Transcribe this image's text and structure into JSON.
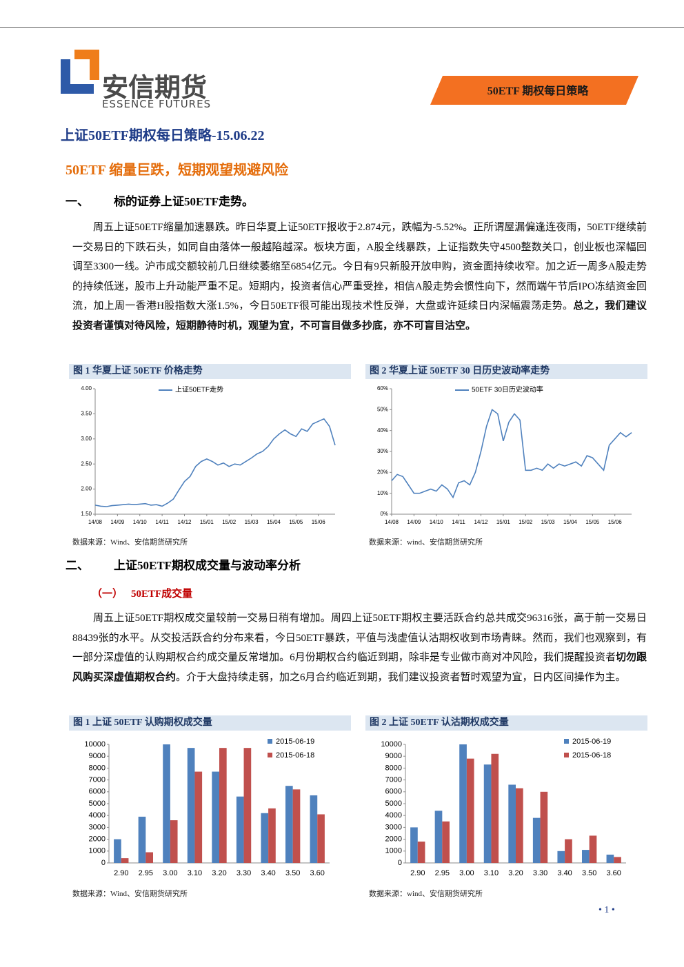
{
  "header": {
    "logo_cn": "安信期货",
    "logo_en": "ESSENCE FUTURES",
    "banner": "50ETF 期权每日策略"
  },
  "title": "上证50ETF期权每日策略-15.06.22",
  "subtitle": "50ETF 缩量巨跌，短期观望规避风险",
  "section1": {
    "number": "一、",
    "heading": "标的证券上证50ETF走势。",
    "paragraph": "周五上证50ETF缩量加速暴跌。昨日华夏上证50ETF报收于2.874元，跌幅为-5.52%。正所谓屋漏偏逢连夜雨，50ETF继续前一交易日的下跌石头，如同自由落体一般越陷越深。板块方面，A股全线暴跌，上证指数失守4500整数关口，创业板也深幅回调至3300一线。沪市成交额较前几日继续萎缩至6854亿元。今日有9只新股开放申购，资金面持续收窄。加之近一周多A股走势的持续低迷，股市上升动能严重不足。短期内，投资者信心严重受挫，相信A股走势会惯性向下，然而端午节后IPO冻结资金回流，加上周一香港H股指数大涨1.5%，今日50ETF很可能出现技术性反弹，大盘或许延续日内深幅震荡走势。",
    "paragraph_bold": "总之，我们建议投资者谨慎对待风险，短期静待时机，观望为宜，不可盲目做多抄底，亦不可盲目沽空。"
  },
  "section2": {
    "number": "二、",
    "heading": "上证50ETF期权成交量与波动率分析",
    "sub_number": "（一）",
    "sub_heading": "50ETF成交量",
    "paragraph": "周五上证50ETF期权成交量较前一交易日稍有增加。周四上证50ETF期权主要活跃合约总共成交96316张，高于前一交易日88439张的水平。从交投活跃合约分布来看，今日50ETF暴跌，平值与浅虚值认沽期权收到市场青睐。然而，我们也观察到，有一部分深虚值的认购期权合约成交量反常增加。6月份期权合约临近到期，除非是专业做市商对冲风险，我们提醒投资者",
    "paragraph_bold": "切勿跟风购买深虚值期权合约",
    "paragraph_end": "。介于大盘持续走弱，加之6月合约临近到期，我们建议投资者暂时观望为宜，日内区间操作为主。"
  },
  "page_number": "1",
  "chart_data": [
    {
      "type": "line",
      "title": "图 1 华夏上证 50ETF 价格走势",
      "source": "数据来源：Wind、安信期货研究所",
      "series": [
        {
          "name": "上证50ETF走势",
          "color": "#4f81bd",
          "values": [
            1.68,
            1.66,
            1.65,
            1.67,
            1.68,
            1.69,
            1.7,
            1.69,
            1.7,
            1.71,
            1.68,
            1.69,
            1.66,
            1.72,
            1.8,
            1.98,
            2.15,
            2.25,
            2.45,
            2.55,
            2.6,
            2.55,
            2.48,
            2.52,
            2.45,
            2.5,
            2.48,
            2.55,
            2.62,
            2.7,
            2.75,
            2.85,
            3.0,
            3.1,
            3.18,
            3.1,
            3.05,
            3.2,
            3.15,
            3.3,
            3.35,
            3.4,
            3.25,
            2.874
          ]
        }
      ],
      "ylim": [
        1.5,
        4.0
      ],
      "yticks": [
        {
          "value": 1.5,
          "label": "1.50"
        },
        {
          "value": 2,
          "label": "2.00"
        },
        {
          "value": 2.5,
          "label": "2.50"
        },
        {
          "value": 3,
          "label": "3.00"
        },
        {
          "value": 3.5,
          "label": "3.50"
        },
        {
          "value": 4,
          "label": "4.00"
        }
      ],
      "xticks": [
        {
          "value": 0,
          "label": "14/08"
        },
        {
          "value": 4,
          "label": "14/09"
        },
        {
          "value": 8,
          "label": "14/10"
        },
        {
          "value": 12,
          "label": "14/11"
        },
        {
          "value": 16,
          "label": "14/12"
        },
        {
          "value": 20,
          "label": "15/01"
        },
        {
          "value": 24,
          "label": "15/02"
        },
        {
          "value": 28,
          "label": "15/03"
        },
        {
          "value": 32,
          "label": "15/04"
        },
        {
          "value": 36,
          "label": "15/05"
        },
        {
          "value": 40,
          "label": "15/06"
        }
      ]
    },
    {
      "type": "line",
      "title": "图 2 华夏上证 50ETF 30 日历史波动率走势",
      "source": "数据来源：wind、安信期货研究所",
      "series": [
        {
          "name": "50ETF 30日历史波动率",
          "color": "#4f81bd",
          "values": [
            16,
            19,
            18,
            14,
            10,
            10,
            11,
            12,
            11,
            14,
            12,
            8,
            15,
            16,
            14,
            20,
            30,
            42,
            50,
            48,
            35,
            44,
            48,
            45,
            21,
            21,
            22,
            21,
            24,
            22,
            24,
            23,
            24,
            25,
            23,
            28,
            27,
            24,
            21,
            33,
            36,
            39,
            37,
            39
          ]
        }
      ],
      "ylim": [
        0,
        60
      ],
      "yticks": [
        {
          "value": 0,
          "label": "0%"
        },
        {
          "value": 10,
          "label": "10%"
        },
        {
          "value": 20,
          "label": "20%"
        },
        {
          "value": 30,
          "label": "30%"
        },
        {
          "value": 40,
          "label": "40%"
        },
        {
          "value": 50,
          "label": "50%"
        },
        {
          "value": 60,
          "label": "60%"
        }
      ],
      "xticks": [
        {
          "value": 0,
          "label": "14/08"
        },
        {
          "value": 4,
          "label": "14/09"
        },
        {
          "value": 8,
          "label": "14/10"
        },
        {
          "value": 12,
          "label": "14/11"
        },
        {
          "value": 16,
          "label": "14/12"
        },
        {
          "value": 20,
          "label": "15/01"
        },
        {
          "value": 24,
          "label": "15/02"
        },
        {
          "value": 28,
          "label": "15/03"
        },
        {
          "value": 32,
          "label": "15/04"
        },
        {
          "value": 36,
          "label": "15/05"
        },
        {
          "value": 40,
          "label": "15/06"
        }
      ]
    },
    {
      "type": "bar",
      "title": "图 1 上证 50ETF 认购期权成交量",
      "source": "数据来源：Wind、安信期货研究所",
      "categories": [
        "2.90",
        "2.95",
        "3.00",
        "3.10",
        "3.20",
        "3.30",
        "3.40",
        "3.50",
        "3.60"
      ],
      "series": [
        {
          "name": "2015-06-19",
          "color": "#4f81bd",
          "values": [
            2000,
            3900,
            10000,
            9700,
            7700,
            5600,
            4200,
            6500,
            5700
          ]
        },
        {
          "name": "2015-06-18",
          "color": "#c0504d",
          "values": [
            400,
            900,
            3600,
            7700,
            9700,
            9700,
            4600,
            6200,
            4100
          ]
        }
      ],
      "ylim": [
        0,
        10000
      ],
      "yticks": [
        0,
        1000,
        2000,
        3000,
        4000,
        5000,
        6000,
        7000,
        8000,
        9000,
        10000
      ]
    },
    {
      "type": "bar",
      "title": "图 2 上证 50ETF 认沽期权成交量",
      "source": "数据来源：wind、安信期货研究所",
      "categories": [
        "2.90",
        "2.95",
        "3.00",
        "3.10",
        "3.20",
        "3.30",
        "3.40",
        "3.50",
        "3.60"
      ],
      "series": [
        {
          "name": "2015-06-19",
          "color": "#4f81bd",
          "values": [
            3000,
            4400,
            10000,
            8300,
            6600,
            3800,
            1000,
            1100,
            700
          ]
        },
        {
          "name": "2015-06-18",
          "color": "#c0504d",
          "values": [
            1800,
            3500,
            8800,
            9200,
            6300,
            6000,
            2000,
            2300,
            500
          ]
        }
      ],
      "ylim": [
        0,
        10000
      ],
      "yticks": [
        0,
        1000,
        2000,
        3000,
        4000,
        5000,
        6000,
        7000,
        8000,
        9000,
        10000
      ]
    }
  ]
}
